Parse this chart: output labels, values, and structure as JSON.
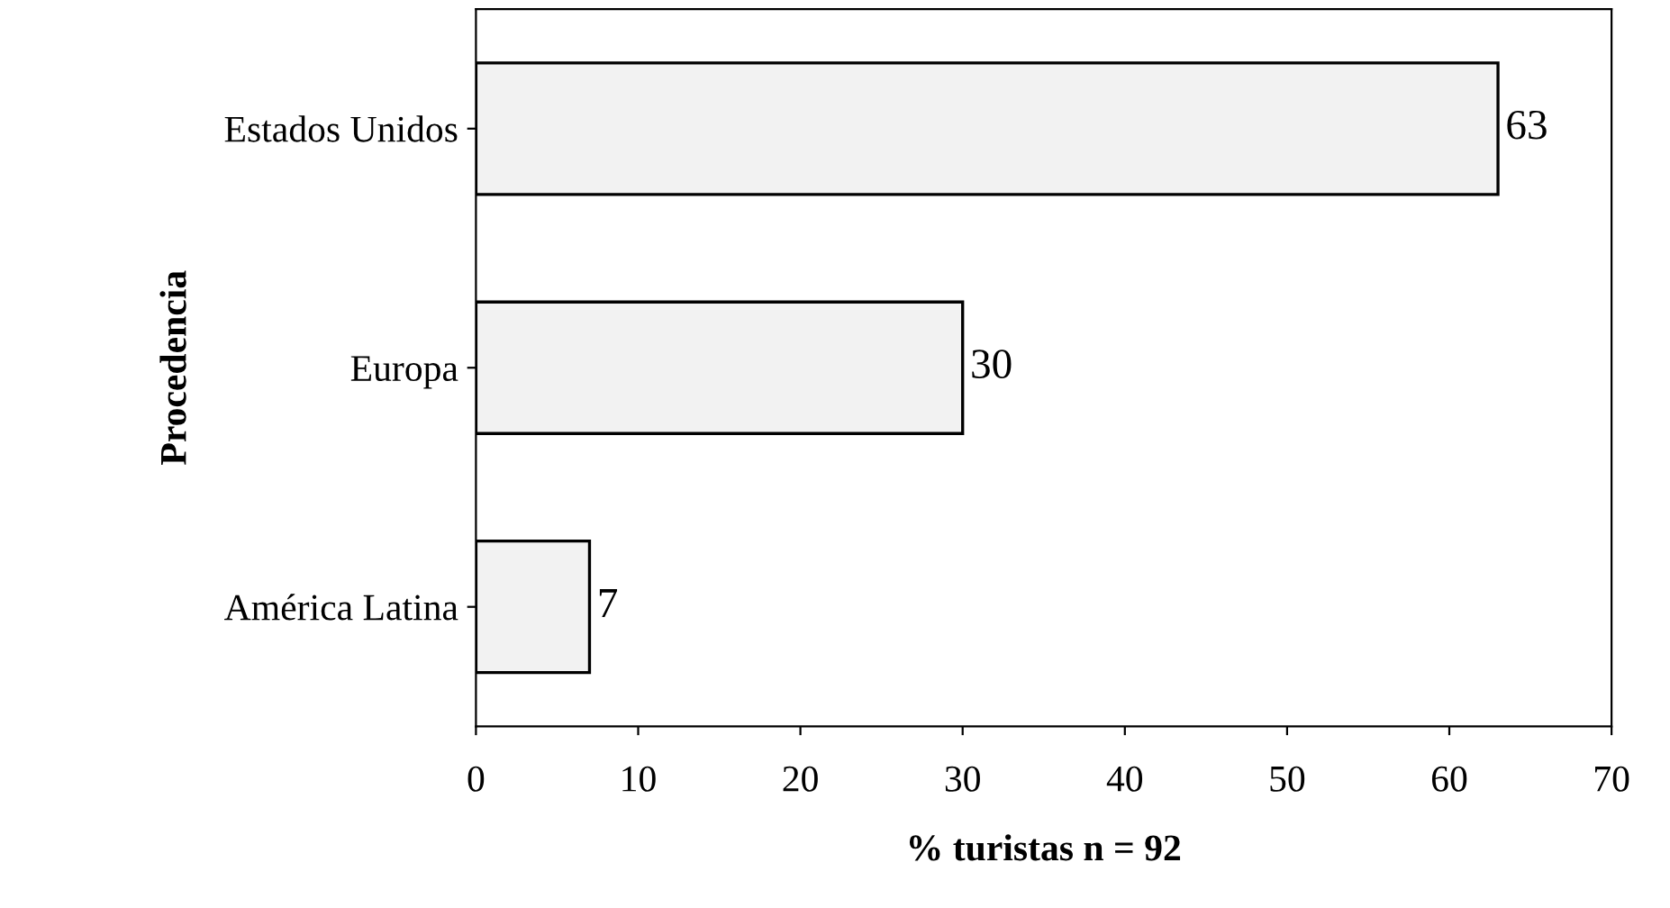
{
  "chart_data": {
    "type": "bar",
    "orientation": "horizontal",
    "xlabel": "% turistas n = 92",
    "ylabel": "Procedencia",
    "categories": [
      "Estados Unidos",
      "Europa",
      "América Latina"
    ],
    "values": [
      63,
      30,
      7
    ],
    "color": "#f2f2f2",
    "xlim": [
      0,
      70
    ],
    "xticks": [
      0,
      10,
      20,
      30,
      40,
      50,
      60,
      70
    ],
    "data_labels": true,
    "grid": false
  }
}
